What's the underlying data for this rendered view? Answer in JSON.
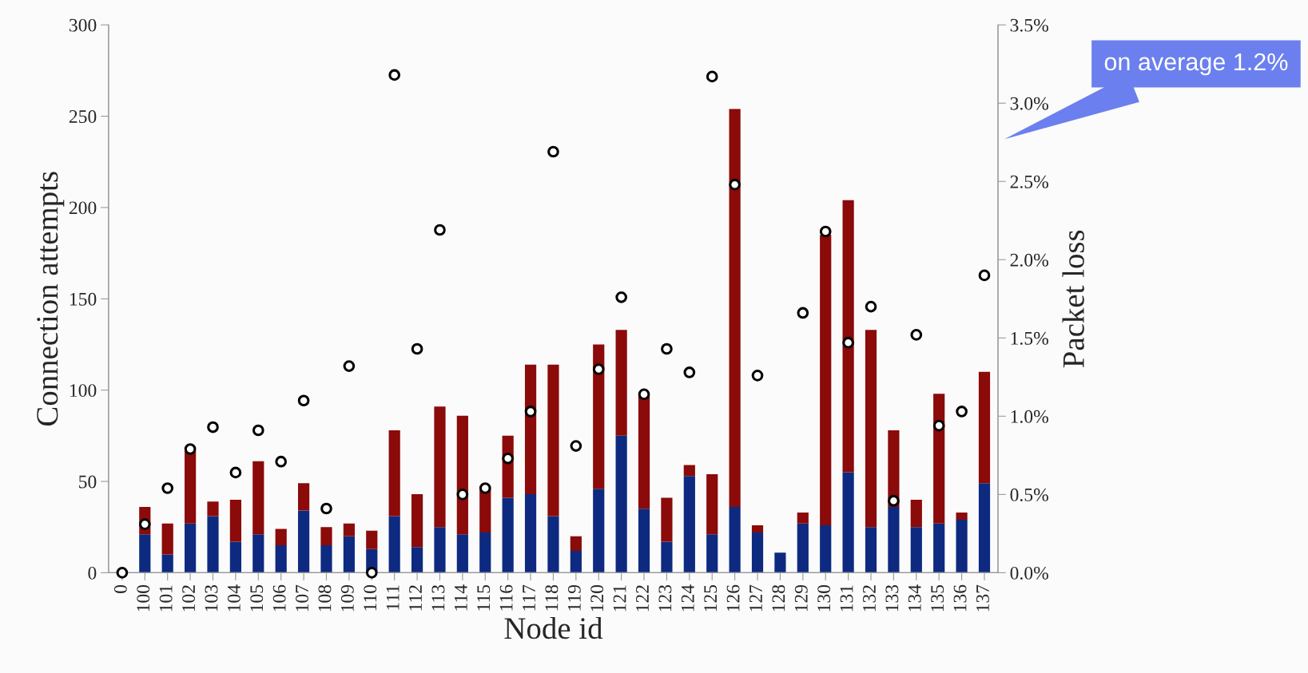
{
  "chart_data": {
    "type": "bar",
    "stacked": true,
    "xlabel": "Node id",
    "ylabel": "Connection attempts",
    "y2label": "Packet loss",
    "categories": [
      "0",
      "100",
      "101",
      "102",
      "103",
      "104",
      "105",
      "106",
      "107",
      "108",
      "109",
      "110",
      "111",
      "112",
      "113",
      "114",
      "115",
      "116",
      "117",
      "118",
      "119",
      "120",
      "121",
      "122",
      "123",
      "124",
      "125",
      "126",
      "127",
      "128",
      "129",
      "130",
      "131",
      "132",
      "133",
      "134",
      "135",
      "136",
      "137"
    ],
    "series": [
      {
        "color": "#0d2a80",
        "values": [
          null,
          21,
          10,
          27,
          31,
          17,
          21,
          15,
          34,
          15,
          20,
          13,
          31,
          14,
          25,
          21,
          22,
          41,
          43,
          31,
          12,
          46,
          75,
          35,
          17,
          53,
          21,
          36,
          22,
          11,
          27,
          26,
          55,
          25,
          36,
          25,
          27,
          29,
          49
        ]
      },
      {
        "color": "#8b0a0a",
        "values": [
          null,
          15,
          17,
          40,
          8,
          23,
          40,
          9,
          15,
          10,
          7,
          10,
          47,
          29,
          66,
          65,
          24,
          34,
          71,
          83,
          8,
          79,
          58,
          62,
          24,
          6,
          33,
          218,
          4,
          null,
          6,
          159,
          149,
          108,
          42,
          15,
          71,
          4,
          61
        ]
      },
      {
        "type": "scatter",
        "axis": "y2",
        "marker": "circle",
        "color": "#ffffff",
        "values": [
          0,
          0.31,
          0.54,
          0.79,
          0.93,
          0.64,
          0.91,
          0.71,
          1.1,
          0.41,
          1.32,
          0,
          3.18,
          1.43,
          2.19,
          0.5,
          0.54,
          0.73,
          1.03,
          2.69,
          0.81,
          1.3,
          1.76,
          1.14,
          1.43,
          1.28,
          3.17,
          2.48,
          1.26,
          null,
          1.66,
          2.18,
          1.47,
          1.7,
          0.46,
          1.52,
          0.94,
          1.03,
          1.9
        ],
        "x": [
          "0",
          "100",
          "101",
          "102",
          "103",
          "104",
          "105",
          "106",
          "107",
          "108",
          "109",
          "110",
          "111",
          "112",
          "113",
          "114",
          "115",
          "116",
          "117",
          "118",
          "119",
          "120",
          "121",
          "122",
          "123",
          "124",
          "125",
          "126",
          "127",
          "128",
          "129",
          "130",
          "131",
          "132",
          "133",
          "134",
          "135",
          "136",
          "137"
        ]
      }
    ],
    "ylim": [
      0,
      300
    ],
    "yticks": [
      0,
      50,
      100,
      150,
      200,
      250,
      300
    ],
    "y2lim": [
      0,
      3.5
    ],
    "y2ticks": [
      {
        "value": 0,
        "label": "0.0%"
      },
      {
        "value": 0.5,
        "label": "0.5%"
      },
      {
        "value": 1,
        "label": "1.0%"
      },
      {
        "value": 1.5,
        "label": "1.5%"
      },
      {
        "value": 2,
        "label": "2.0%"
      },
      {
        "value": 2.5,
        "label": "2.5%"
      },
      {
        "value": 3,
        "label": "3.0%"
      },
      {
        "value": 3.5,
        "label": "3.5%"
      }
    ],
    "grid": false,
    "legend": false,
    "annotations": [
      "on average 1.2%"
    ]
  }
}
